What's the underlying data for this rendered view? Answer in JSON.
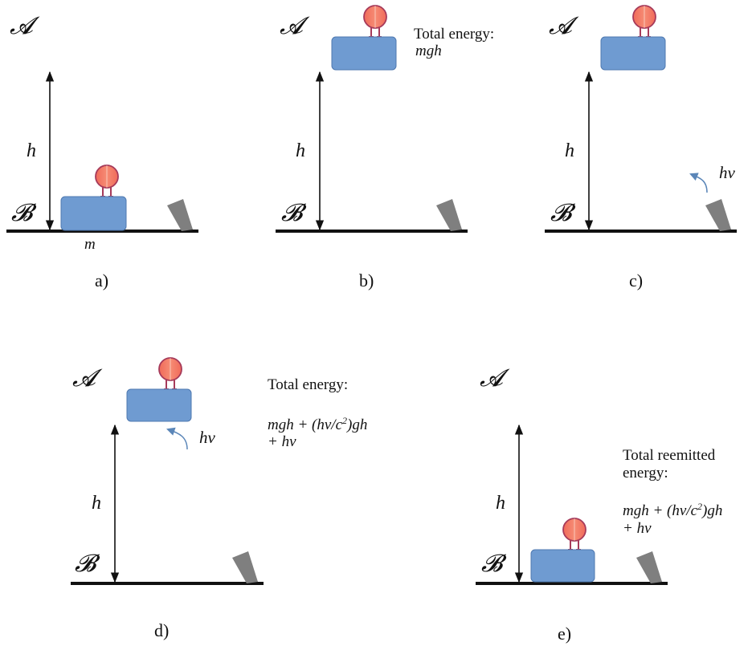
{
  "labels": {
    "top": "𝓐",
    "bottom": "𝓑",
    "height": "h",
    "mass": "m",
    "photon": "hν"
  },
  "panels": {
    "a": {
      "caption": "a)"
    },
    "b": {
      "caption": "b)",
      "energy_title": "Total energy:",
      "energy_eq": "mgh"
    },
    "c": {
      "caption": "c)"
    },
    "d": {
      "caption": "d)",
      "energy_title": "Total energy:",
      "energy_eq_1a": "mgh + (hν/c",
      "energy_eq_1sup": "2",
      "energy_eq_1b": ")gh",
      "energy_eq_2": "+ hν"
    },
    "e": {
      "caption": "e)",
      "energy_title_1": "Total reemitted",
      "energy_title_2": "energy:",
      "energy_eq_1a": "mgh + (hν/c",
      "energy_eq_1sup": "2",
      "energy_eq_1b": ")gh",
      "energy_eq_2": "+ hν"
    }
  },
  "colors": {
    "box_fill": "#6f9bd1",
    "box_stroke": "#4f79b0",
    "clock_fill": "#f47a68",
    "clock_stroke": "#a63a5a",
    "detector": "#7f7f7f",
    "photon_arrow": "#5b86b8",
    "ink": "#111111"
  }
}
